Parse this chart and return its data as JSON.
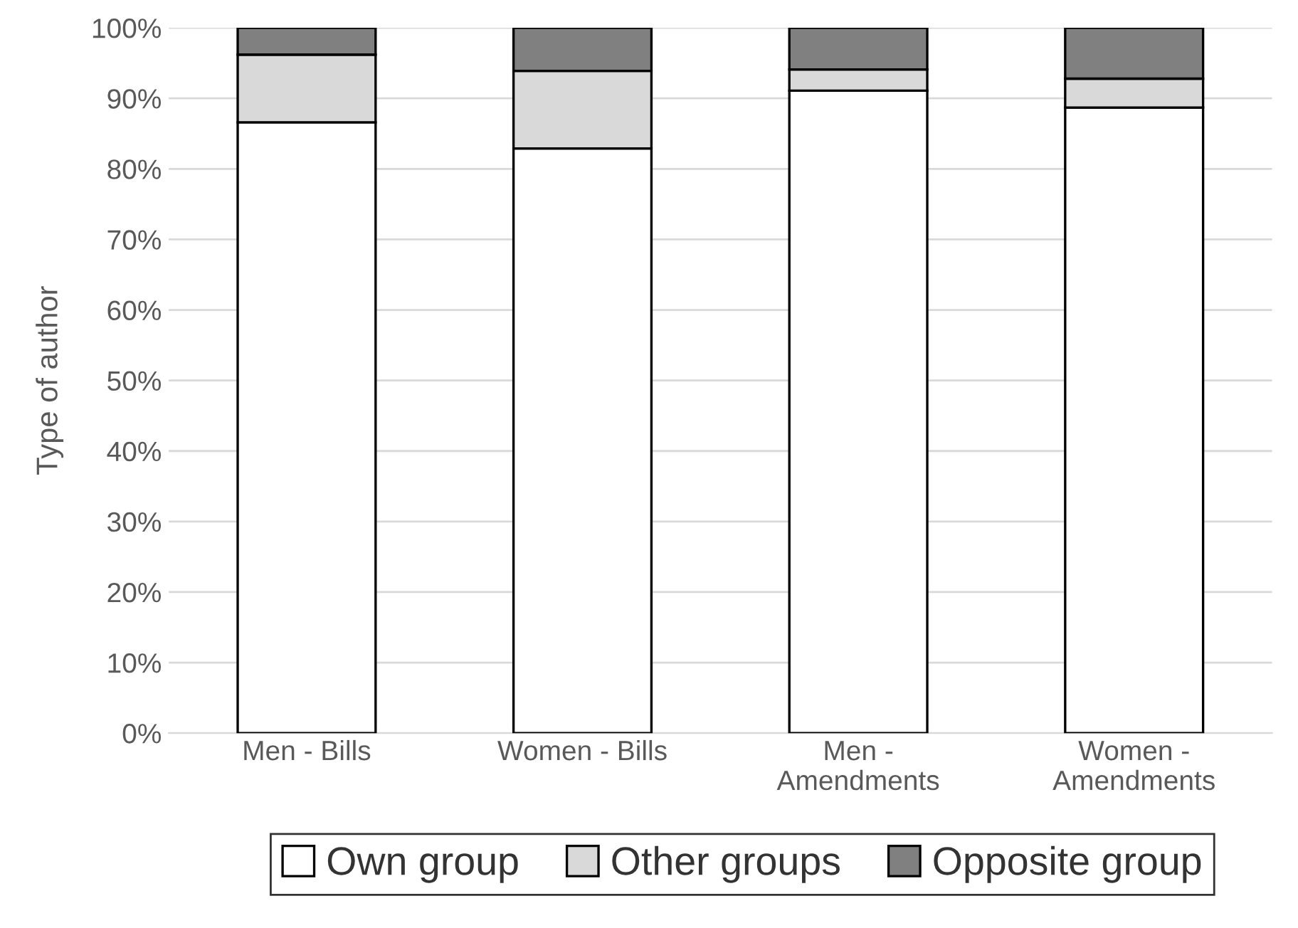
{
  "chart_data": {
    "type": "bar",
    "stacked": true,
    "ylabel": "Type of author",
    "categories": [
      "Men - Bills",
      "Women - Bills",
      "Men -\nAmendments",
      "Women -\nAmendments"
    ],
    "series": [
      {
        "name": "Own group",
        "color": "#ffffff",
        "values": [
          86.6,
          82.9,
          91.1,
          88.7
        ]
      },
      {
        "name": "Other groups",
        "color": "#d9d9d9",
        "values": [
          9.6,
          11.0,
          3.0,
          4.1
        ]
      },
      {
        "name": "Opposite group",
        "color": "#808080",
        "values": [
          3.8,
          6.1,
          5.9,
          7.2
        ]
      }
    ],
    "ylim": [
      0,
      100
    ],
    "yticks": [
      {
        "value": 0,
        "label": "0%"
      },
      {
        "value": 10,
        "label": "10%"
      },
      {
        "value": 20,
        "label": "20%"
      },
      {
        "value": 30,
        "label": "30%"
      },
      {
        "value": 40,
        "label": "40%"
      },
      {
        "value": 50,
        "label": "50%"
      },
      {
        "value": 60,
        "label": "60%"
      },
      {
        "value": 70,
        "label": "70%"
      },
      {
        "value": 80,
        "label": "80%"
      },
      {
        "value": 90,
        "label": "90%"
      },
      {
        "value": 100,
        "label": "100%"
      }
    ],
    "grid": "y",
    "legend": "bottom"
  }
}
